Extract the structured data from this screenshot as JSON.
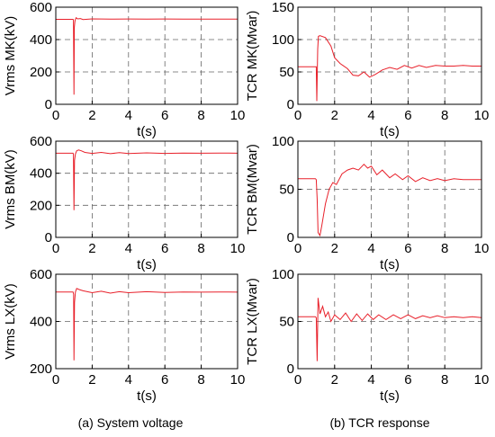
{
  "figure": {
    "caption_left": "(a) System voltage",
    "caption_right": "(b) TCR response"
  },
  "chart_data": [
    {
      "type": "line",
      "id": "a1",
      "xlabel": "t(s)",
      "ylabel": "Vrms MK(kV)",
      "xlim": [
        0,
        10
      ],
      "ylim": [
        0,
        600
      ],
      "xticks": [
        0,
        2,
        4,
        6,
        8,
        10
      ],
      "yticks": [
        0,
        200,
        400,
        600
      ],
      "ref_lines": [
        400,
        200
      ],
      "series": [
        {
          "color": "#e8202a",
          "x": [
            0,
            0.9,
            0.95,
            0.97,
            1.0,
            1.02,
            1.05,
            1.08,
            1.12,
            1.2,
            1.35,
            1.5,
            2,
            3,
            4,
            5,
            6,
            7,
            8,
            9,
            10
          ],
          "y": [
            525,
            525,
            525,
            520,
            60,
            475,
            510,
            525,
            535,
            528,
            530,
            524,
            528,
            526,
            527,
            526,
            527,
            526,
            526,
            526,
            526
          ]
        }
      ]
    },
    {
      "type": "line",
      "id": "b1",
      "xlabel": "t(s)",
      "ylabel": "TCR MK(Mvar)",
      "xlim": [
        0,
        10
      ],
      "ylim": [
        0,
        150
      ],
      "xticks": [
        0,
        2,
        4,
        6,
        8,
        10
      ],
      "yticks": [
        0,
        50,
        100,
        150
      ],
      "ref_lines": [
        100,
        50
      ],
      "series": [
        {
          "color": "#e8202a",
          "x": [
            0,
            0.95,
            1.0,
            1.03,
            1.08,
            1.12,
            1.2,
            1.5,
            1.8,
            2.0,
            2.3,
            2.7,
            3.0,
            3.3,
            3.6,
            3.9,
            4.2,
            4.6,
            5.0,
            5.4,
            5.8,
            6.2,
            6.6,
            7.0,
            7.5,
            8.0,
            8.5,
            9.0,
            9.5,
            10
          ],
          "y": [
            58,
            58,
            58,
            5,
            85,
            105,
            106,
            103,
            90,
            72,
            63,
            55,
            45,
            44,
            50,
            42,
            46,
            53,
            57,
            54,
            60,
            56,
            60,
            57,
            60,
            59,
            59,
            60,
            59,
            59
          ]
        }
      ]
    },
    {
      "type": "line",
      "id": "a2",
      "xlabel": "t(s)",
      "ylabel": "Vrms BM(kV)",
      "xlim": [
        0,
        10
      ],
      "ylim": [
        0,
        600
      ],
      "xticks": [
        0,
        2,
        4,
        6,
        8,
        10
      ],
      "yticks": [
        0,
        200,
        400,
        600
      ],
      "ref_lines": [
        400,
        200
      ],
      "series": [
        {
          "color": "#e8202a",
          "x": [
            0,
            0.9,
            0.95,
            0.97,
            1.0,
            1.03,
            1.08,
            1.15,
            1.25,
            1.4,
            1.6,
            2,
            2.5,
            3,
            3.5,
            4,
            5,
            6,
            7,
            8,
            9,
            10
          ],
          "y": [
            525,
            525,
            525,
            515,
            170,
            480,
            520,
            540,
            545,
            540,
            530,
            524,
            530,
            522,
            528,
            523,
            527,
            524,
            526,
            525,
            526,
            525
          ]
        }
      ]
    },
    {
      "type": "line",
      "id": "b2",
      "xlabel": "t(s)",
      "ylabel": "TCR BM(Mvar)",
      "xlim": [
        0,
        10
      ],
      "ylim": [
        0,
        100
      ],
      "xticks": [
        0,
        2,
        4,
        6,
        8,
        10
      ],
      "yticks": [
        0,
        50,
        100
      ],
      "ref_lines": [
        50
      ],
      "series": [
        {
          "color": "#e8202a",
          "x": [
            0,
            0.9,
            0.95,
            1.0,
            1.05,
            1.1,
            1.2,
            1.3,
            1.5,
            1.7,
            1.9,
            2.1,
            2.4,
            2.7,
            3.0,
            3.3,
            3.6,
            3.8,
            4.0,
            4.3,
            4.6,
            5.0,
            5.3,
            5.7,
            6.0,
            6.4,
            6.8,
            7.2,
            7.6,
            8.0,
            8.5,
            9.0,
            9.5,
            10
          ],
          "y": [
            61,
            61,
            61,
            60,
            40,
            5,
            2,
            12,
            35,
            50,
            57,
            55,
            66,
            70,
            72,
            70,
            76,
            72,
            74,
            65,
            70,
            62,
            66,
            60,
            64,
            58,
            62,
            59,
            61,
            59,
            61,
            60,
            60,
            60
          ]
        }
      ]
    },
    {
      "type": "line",
      "id": "a3",
      "xlabel": "t(s)",
      "ylabel": "Vrms LX(kV)",
      "xlim": [
        0,
        10
      ],
      "ylim": [
        200,
        600
      ],
      "xticks": [
        0,
        2,
        4,
        6,
        8,
        10
      ],
      "yticks": [
        200,
        400,
        600
      ],
      "ref_lines": [
        400
      ],
      "series": [
        {
          "color": "#e8202a",
          "x": [
            0,
            0.9,
            0.95,
            0.98,
            1.0,
            1.03,
            1.08,
            1.15,
            1.3,
            1.5,
            2,
            2.5,
            3,
            3.5,
            4,
            5,
            6,
            7,
            8,
            9,
            10
          ],
          "y": [
            525,
            525,
            525,
            515,
            235,
            480,
            525,
            540,
            535,
            530,
            522,
            528,
            520,
            526,
            522,
            526,
            523,
            525,
            524,
            525,
            524
          ]
        }
      ]
    },
    {
      "type": "line",
      "id": "b3",
      "xlabel": "t(s)",
      "ylabel": "TCR LX(Mvar)",
      "xlim": [
        0,
        10
      ],
      "ylim": [
        0,
        100
      ],
      "xticks": [
        0,
        2,
        4,
        6,
        8,
        10
      ],
      "yticks": [
        0,
        50,
        100
      ],
      "ref_lines": [
        50
      ],
      "series": [
        {
          "color": "#e8202a",
          "x": [
            0,
            0.9,
            0.95,
            1.0,
            1.05,
            1.1,
            1.2,
            1.35,
            1.5,
            1.65,
            1.8,
            2.0,
            2.3,
            2.6,
            2.9,
            3.2,
            3.5,
            3.8,
            4.1,
            4.4,
            4.8,
            5.2,
            5.6,
            6.0,
            6.4,
            6.8,
            7.2,
            7.6,
            8.0,
            8.5,
            9.0,
            9.5,
            10
          ],
          "y": [
            55,
            55,
            55,
            54,
            8,
            75,
            58,
            66,
            55,
            60,
            50,
            57,
            52,
            59,
            50,
            58,
            51,
            58,
            52,
            57,
            52,
            57,
            53,
            57,
            53,
            56,
            54,
            56,
            54,
            55,
            54,
            55,
            54
          ]
        }
      ]
    }
  ]
}
